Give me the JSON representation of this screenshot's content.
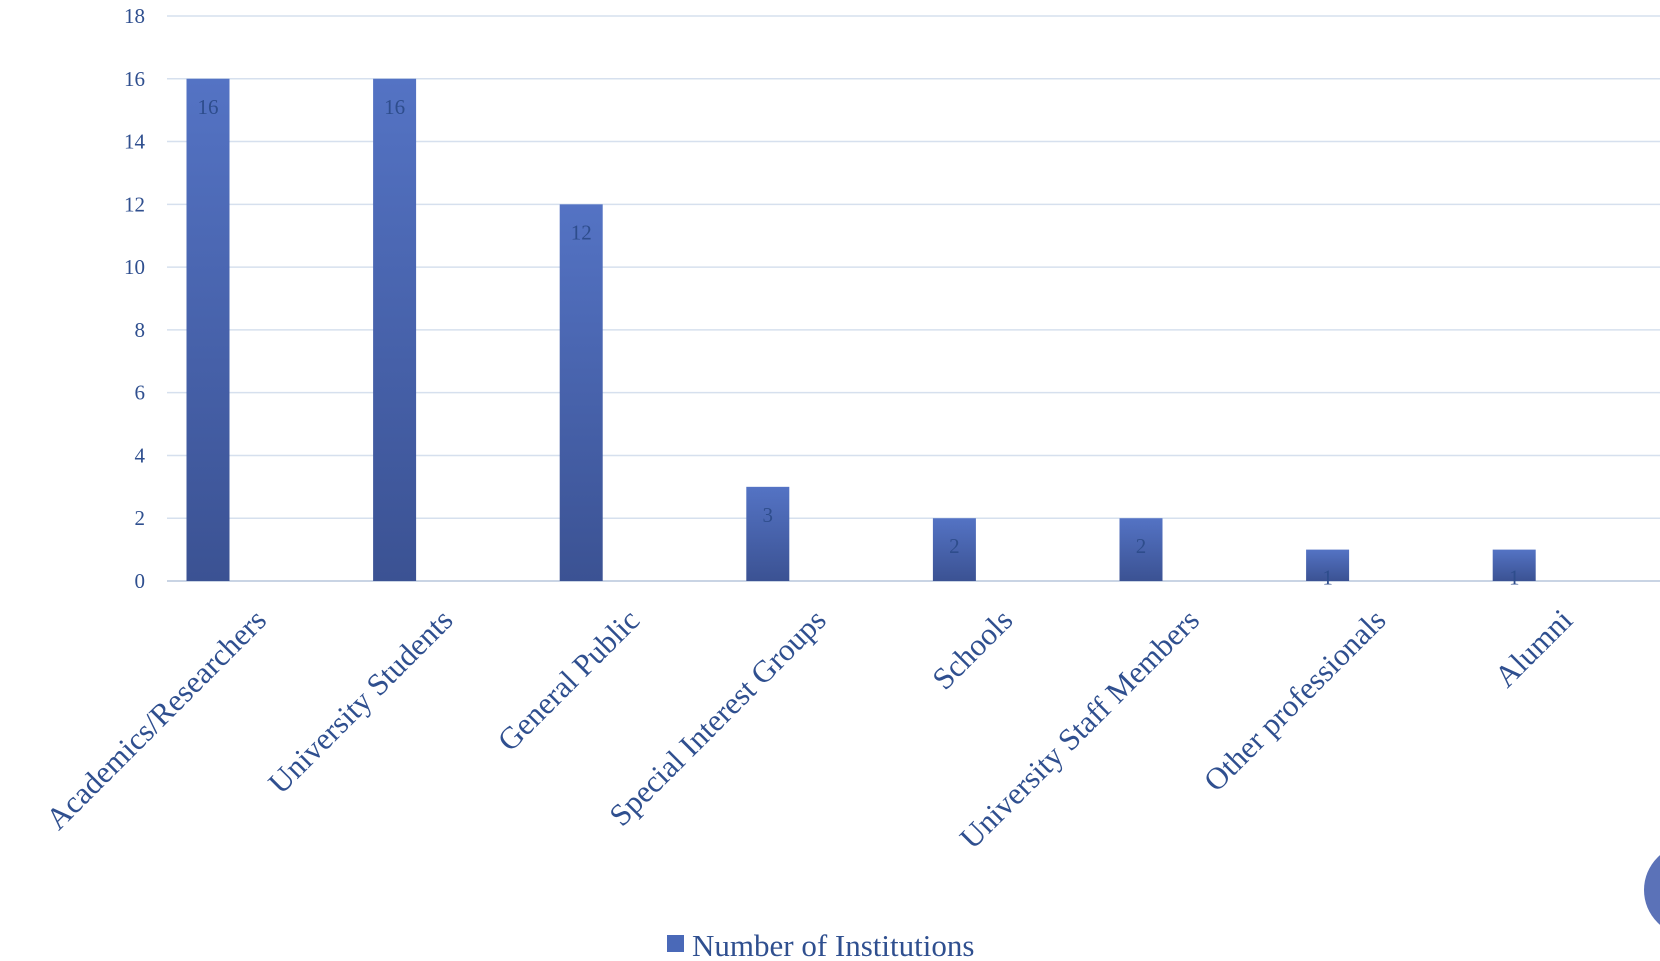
{
  "chart_data": {
    "type": "bar",
    "categories": [
      "Academics/Researchers",
      "University Students",
      "General Public",
      "Special Interest Groups",
      "Schools",
      "University Staff Members",
      "Other professionals",
      "Alumni"
    ],
    "series": [
      {
        "name": "Number of Institutions",
        "values": [
          16,
          16,
          12,
          3,
          2,
          2,
          1,
          1
        ],
        "color": "#4A69B8"
      }
    ],
    "ylim": [
      0,
      18
    ],
    "yticks": [
      0,
      2,
      4,
      6,
      8,
      10,
      12,
      14,
      16,
      18
    ],
    "grid": true,
    "data_labels": true,
    "legend_position": "bottom",
    "colors": {
      "bar_top": "#5473C4",
      "bar_bottom": "#3B5293",
      "text": "#2F4F8F",
      "grid": "#D6E0EE",
      "decoration": "#5B72B8"
    }
  }
}
